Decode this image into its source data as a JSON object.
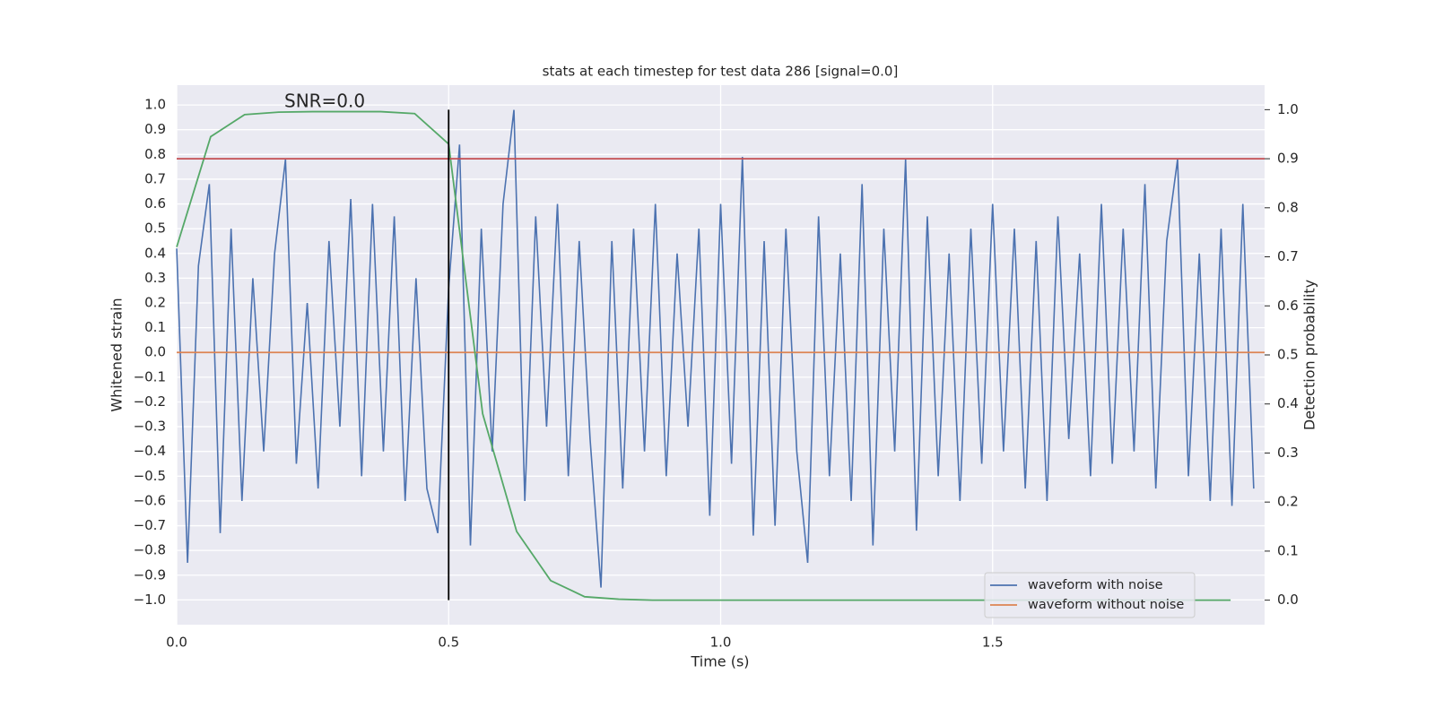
{
  "chart_data": {
    "type": "line",
    "title": "stats at each timestep for test data 286 [signal=0.0]",
    "annotation": "SNR=0.0",
    "xlabel": "Time (s)",
    "ylabel": "Whitened strain",
    "y2label": "Detection probability",
    "xlim": [
      0,
      2.0
    ],
    "xticks": [
      {
        "value": 0,
        "label": "0.0"
      },
      0.5,
      {
        "value": 1,
        "label": "1.0"
      },
      1.5
    ],
    "ylim": [
      -1.1,
      1.08
    ],
    "yticks": [
      {
        "value": -1,
        "label": "−1.0"
      },
      {
        "value": -0.9,
        "label": "−0.9"
      },
      {
        "value": -0.8,
        "label": "−0.8"
      },
      {
        "value": -0.7,
        "label": "−0.7"
      },
      {
        "value": -0.6,
        "label": "−0.6"
      },
      {
        "value": -0.5,
        "label": "−0.5"
      },
      {
        "value": -0.4,
        "label": "−0.4"
      },
      {
        "value": -0.3,
        "label": "−0.3"
      },
      {
        "value": -0.2,
        "label": "−0.2"
      },
      {
        "value": -0.1,
        "label": "−0.1"
      },
      {
        "value": 0,
        "label": "0.0"
      },
      0.1,
      0.2,
      0.3,
      0.4,
      0.5,
      0.6,
      0.7,
      0.8,
      0.9,
      {
        "value": 1,
        "label": "1.0"
      }
    ],
    "y2lim": [
      -0.05,
      1.05
    ],
    "y2ticks": [
      {
        "value": 0,
        "label": "0.0"
      },
      0.1,
      0.2,
      0.3,
      0.4,
      0.5,
      0.6,
      0.7,
      0.8,
      0.9,
      {
        "value": 1,
        "label": "1.0"
      }
    ],
    "grid": true,
    "legend": "lower right",
    "series": [
      {
        "name": "waveform with noise",
        "color": "#4c72b0",
        "x": [
          0,
          0.02,
          0.04,
          0.06,
          0.08,
          0.1,
          0.12,
          0.14,
          0.16,
          0.18,
          0.2,
          0.22,
          0.24,
          0.26,
          0.28,
          0.3,
          0.32,
          0.34,
          0.36,
          0.38,
          0.4,
          0.42,
          0.44,
          0.46,
          0.48,
          0.5,
          0.52,
          0.54,
          0.56,
          0.58,
          0.6,
          0.62,
          0.64,
          0.66,
          0.68,
          0.7,
          0.72,
          0.74,
          0.76,
          0.78,
          0.8,
          0.82,
          0.84,
          0.86,
          0.88,
          0.9,
          0.92,
          0.94,
          0.96,
          0.98,
          1,
          1.02,
          1.04,
          1.06,
          1.08,
          1.1,
          1.12,
          1.14,
          1.16,
          1.18,
          1.2,
          1.22,
          1.24,
          1.26,
          1.28,
          1.3,
          1.32,
          1.34,
          1.36,
          1.38,
          1.4,
          1.42,
          1.44,
          1.46,
          1.48,
          1.5,
          1.52,
          1.54,
          1.56,
          1.58,
          1.6,
          1.62,
          1.64,
          1.66,
          1.68,
          1.7,
          1.72,
          1.74,
          1.76,
          1.78,
          1.8,
          1.82,
          1.84,
          1.86,
          1.88,
          1.9,
          1.92,
          1.94,
          1.96,
          1.98
        ],
        "values": [
          0.42,
          -0.85,
          0.35,
          0.68,
          -0.73,
          0.5,
          -0.6,
          0.3,
          -0.4,
          0.4,
          0.78,
          -0.45,
          0.2,
          -0.55,
          0.45,
          -0.3,
          0.62,
          -0.5,
          0.6,
          -0.4,
          0.55,
          -0.6,
          0.3,
          -0.55,
          -0.73,
          0.26,
          0.84,
          -0.78,
          0.5,
          -0.4,
          0.6,
          0.98,
          -0.6,
          0.55,
          -0.3,
          0.6,
          -0.5,
          0.45,
          -0.35,
          -0.95,
          0.45,
          -0.55,
          0.5,
          -0.4,
          0.6,
          -0.5,
          0.4,
          -0.3,
          0.5,
          -0.66,
          0.6,
          -0.45,
          0.79,
          -0.74,
          0.45,
          -0.7,
          0.5,
          -0.4,
          -0.85,
          0.55,
          -0.5,
          0.4,
          -0.6,
          0.68,
          -0.78,
          0.5,
          -0.4,
          0.78,
          -0.72,
          0.55,
          -0.5,
          0.4,
          -0.6,
          0.5,
          -0.45,
          0.6,
          -0.4,
          0.5,
          -0.55,
          0.45,
          -0.6,
          0.55,
          -0.35,
          0.4,
          -0.5,
          0.6,
          -0.45,
          0.5,
          -0.4,
          0.68,
          -0.55,
          0.45,
          0.78,
          -0.5,
          0.4,
          -0.6,
          0.5,
          -0.62,
          0.6,
          -0.55
        ]
      },
      {
        "name": "waveform without noise",
        "color": "#dd8452",
        "x": [
          0,
          2.0
        ],
        "values": [
          0,
          0
        ]
      }
    ],
    "detection_probability": {
      "color": "#55a868",
      "axis": "y2",
      "x": [
        0,
        0.0625,
        0.125,
        0.1875,
        0.25,
        0.3125,
        0.375,
        0.4375,
        0.5,
        0.5625,
        0.625,
        0.6875,
        0.75,
        0.8125,
        0.875,
        0.9375,
        1,
        1.0625,
        1.125,
        1.1875,
        1.25,
        1.3125,
        1.375,
        1.4375,
        1.5,
        1.5625,
        1.625,
        1.6875,
        1.75,
        1.8125,
        1.875,
        1.9375
      ],
      "values": [
        0.72,
        0.945,
        0.99,
        0.995,
        0.996,
        0.996,
        0.996,
        0.992,
        0.93,
        0.38,
        0.14,
        0.04,
        0.007,
        0.002,
        0,
        0,
        0,
        0,
        0,
        0,
        0,
        0,
        0,
        0,
        0,
        0,
        0,
        0,
        0,
        0,
        0,
        0
      ]
    },
    "threshold": {
      "value": 0.9,
      "axis": "y2",
      "color": "#c44e52"
    },
    "marker": {
      "x": 0.5,
      "color": "#000000"
    }
  }
}
